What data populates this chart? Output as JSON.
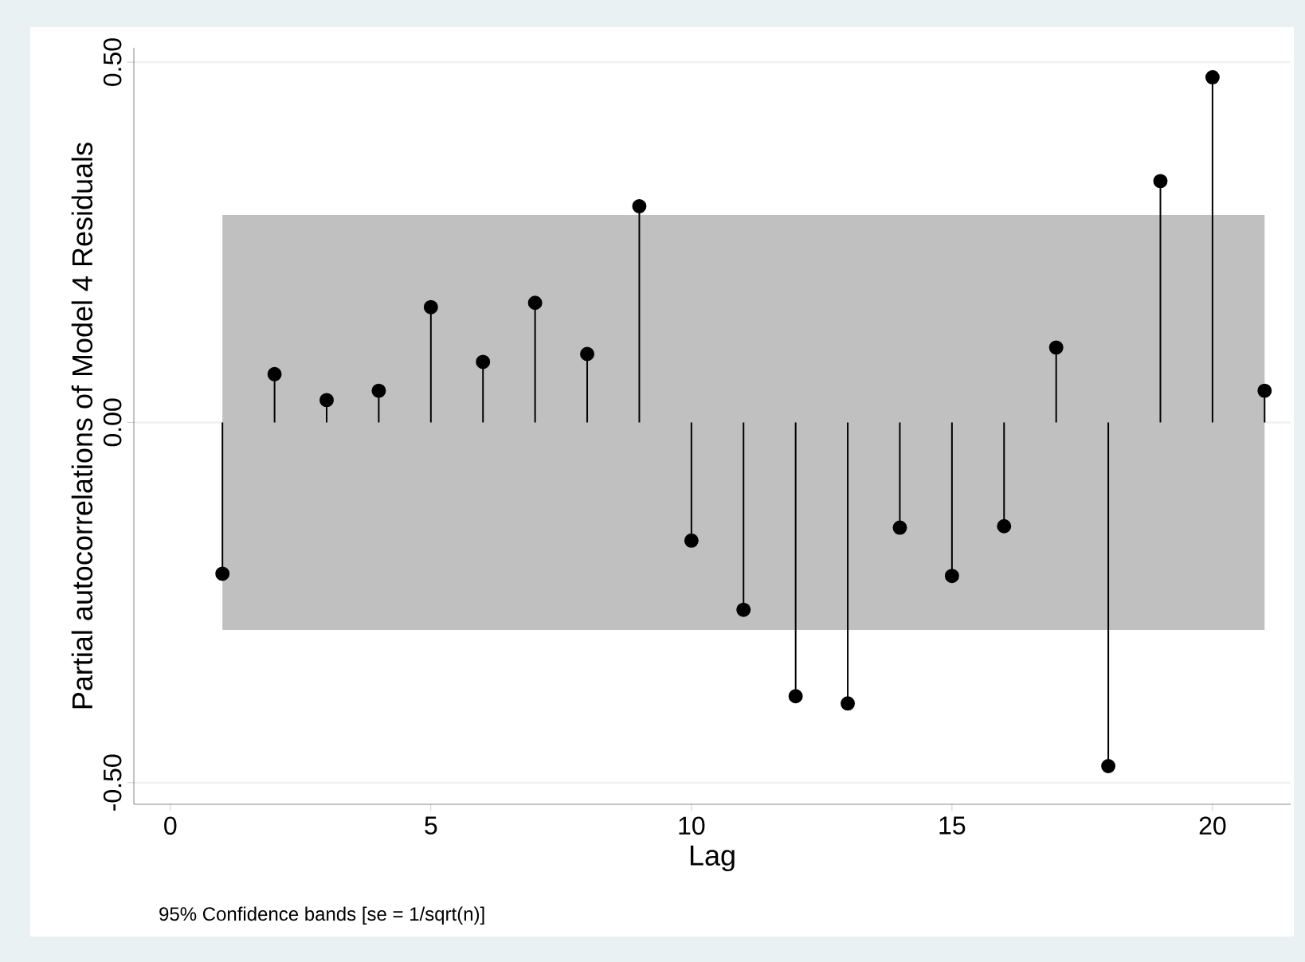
{
  "chart_data": {
    "type": "lollipop",
    "xlabel": "Lag",
    "ylabel": "Partial autocorrelations of Model 4 Residuals",
    "annotations": [
      "95% Confidence bands [se = 1/sqrt(n)]"
    ],
    "x": [
      1,
      2,
      3,
      4,
      5,
      6,
      7,
      8,
      9,
      10,
      11,
      12,
      13,
      14,
      15,
      16,
      17,
      18,
      19,
      20,
      21
    ],
    "values": [
      -0.21,
      0.067,
      0.031,
      0.044,
      0.16,
      0.084,
      0.166,
      0.095,
      0.3,
      -0.164,
      -0.26,
      -0.38,
      -0.39,
      -0.146,
      -0.213,
      -0.144,
      0.104,
      -0.477,
      0.335,
      0.479,
      0.044
    ],
    "color": "#000000",
    "marker": "circle",
    "xlim": [
      -0.7,
      21.5
    ],
    "ylim": [
      -0.53,
      0.52
    ],
    "xticks": [
      0,
      5,
      10,
      15,
      20
    ],
    "yticks": [
      {
        "value": -0.5,
        "label": "-0.50"
      },
      {
        "value": 0,
        "label": "0.00"
      },
      {
        "value": 0.5,
        "label": "0.50"
      }
    ],
    "bands": [
      {
        "axis": "y",
        "from": -0.288,
        "to": 0.288,
        "color": "#c0c0c0"
      }
    ],
    "grid": "y"
  }
}
